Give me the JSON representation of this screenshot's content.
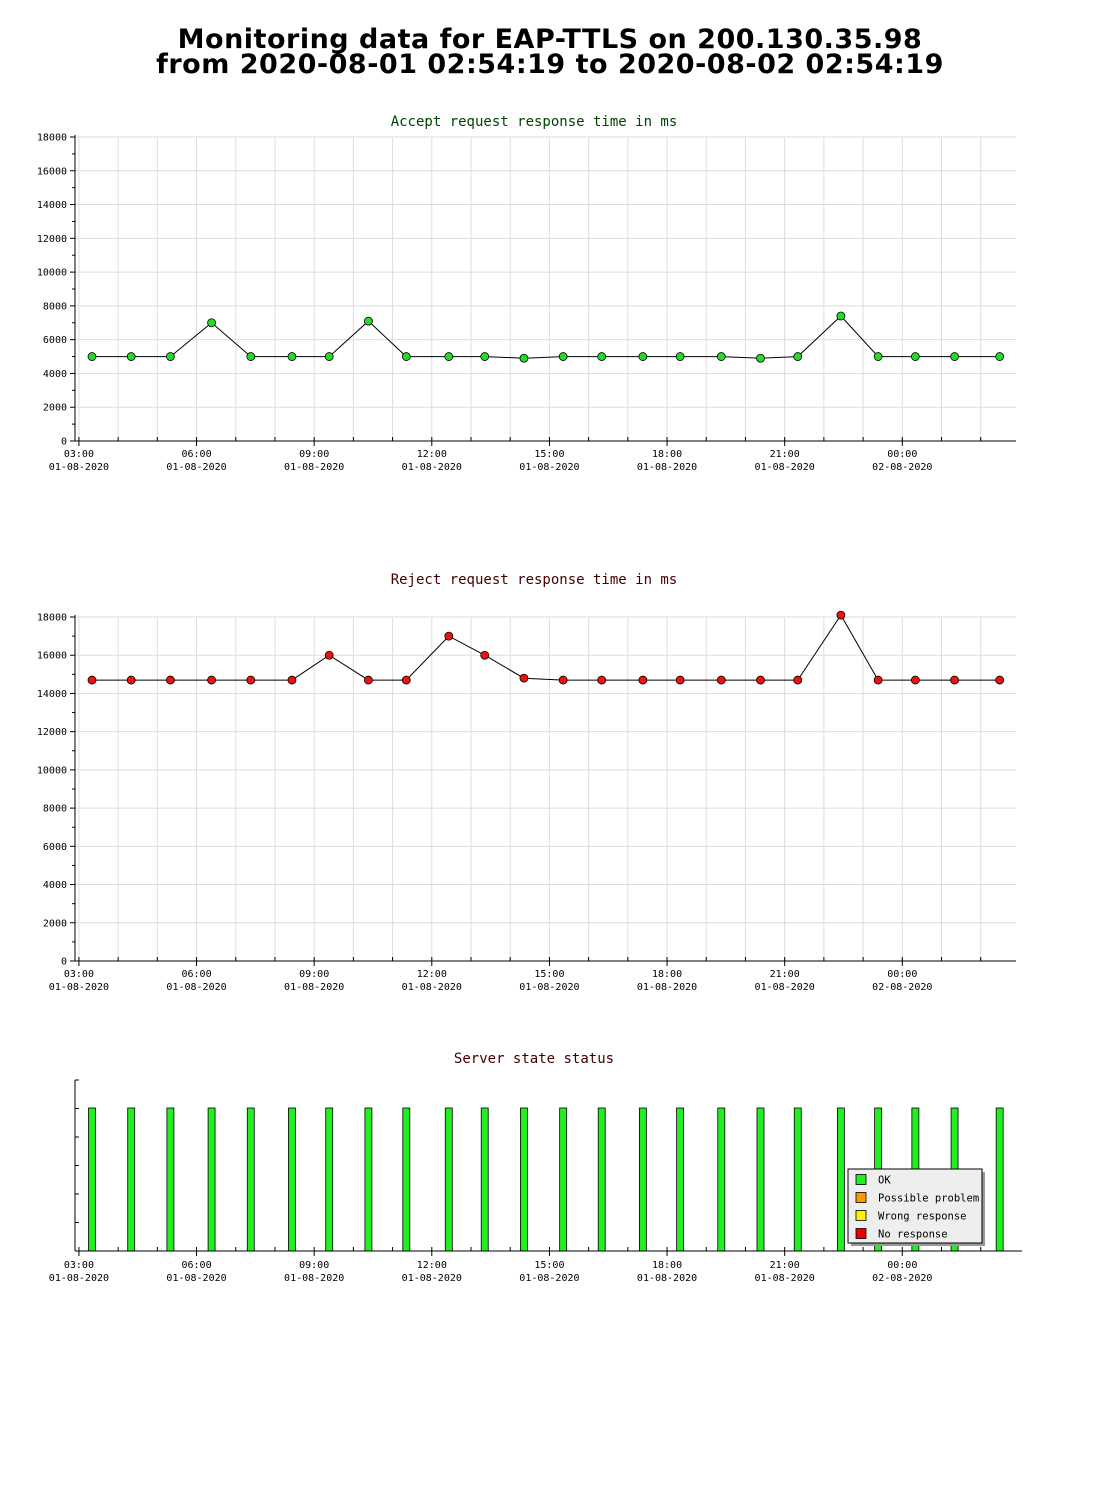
{
  "page": {
    "title_line1": "Monitoring data for EAP-TTLS on 200.130.35.98",
    "title_line2": "from 2020-08-01 02:54:19 to 2020-08-02 02:54:19"
  },
  "colors": {
    "accept_title": "#004400",
    "reject_title": "#440000",
    "status_title": "#440000",
    "accept_marker": "#22dd22",
    "reject_marker": "#ee1111",
    "line": "#000000",
    "grid": "#dddddd",
    "ok": "#22ee22",
    "possible_problem": "#ff9900",
    "wrong_response": "#ffee00",
    "no_response": "#ee0000"
  },
  "x_axis": {
    "ticks": [
      {
        "time": "03:00",
        "date": "01-08-2020"
      },
      {
        "time": "06:00",
        "date": "01-08-2020"
      },
      {
        "time": "09:00",
        "date": "01-08-2020"
      },
      {
        "time": "12:00",
        "date": "01-08-2020"
      },
      {
        "time": "15:00",
        "date": "01-08-2020"
      },
      {
        "time": "18:00",
        "date": "01-08-2020"
      },
      {
        "time": "21:00",
        "date": "01-08-2020"
      },
      {
        "time": "00:00",
        "date": "02-08-2020"
      }
    ]
  },
  "chart_data": [
    {
      "type": "line",
      "title": "Accept request response time in ms",
      "ylim": [
        0,
        18000
      ],
      "yticks": [
        0,
        2000,
        4000,
        6000,
        8000,
        10000,
        12000,
        14000,
        16000,
        18000
      ],
      "grid": true,
      "x": [
        "2020-08-01 03:20",
        "2020-08-01 04:20",
        "2020-08-01 05:20",
        "2020-08-01 06:23",
        "2020-08-01 07:23",
        "2020-08-01 08:26",
        "2020-08-01 09:23",
        "2020-08-01 10:23",
        "2020-08-01 11:21",
        "2020-08-01 12:26",
        "2020-08-01 13:21",
        "2020-08-01 14:21",
        "2020-08-01 15:21",
        "2020-08-01 16:20",
        "2020-08-01 17:23",
        "2020-08-01 18:20",
        "2020-08-01 19:23",
        "2020-08-01 20:23",
        "2020-08-01 21:20",
        "2020-08-01 22:26",
        "2020-08-01 23:23",
        "2020-08-02 00:20",
        "2020-08-02 01:20",
        "2020-08-02 02:29"
      ],
      "series": [
        {
          "values": [
            5000,
            5000,
            5000,
            7000,
            5000,
            5000,
            5000,
            7100,
            5000,
            5000,
            5000,
            4900,
            5000,
            5000,
            5000,
            5000,
            5000,
            4900,
            5000,
            7400,
            5000,
            5000,
            5000,
            5000
          ]
        }
      ]
    },
    {
      "type": "line",
      "title": "Reject request response time in ms",
      "ylim": [
        0,
        18000
      ],
      "yticks": [
        0,
        2000,
        4000,
        6000,
        8000,
        10000,
        12000,
        14000,
        16000,
        18000
      ],
      "grid": true,
      "x": [
        "2020-08-01 03:20",
        "2020-08-01 04:20",
        "2020-08-01 05:20",
        "2020-08-01 06:23",
        "2020-08-01 07:23",
        "2020-08-01 08:26",
        "2020-08-01 09:23",
        "2020-08-01 10:23",
        "2020-08-01 11:21",
        "2020-08-01 12:26",
        "2020-08-01 13:21",
        "2020-08-01 14:21",
        "2020-08-01 15:21",
        "2020-08-01 16:20",
        "2020-08-01 17:23",
        "2020-08-01 18:20",
        "2020-08-01 19:23",
        "2020-08-01 20:23",
        "2020-08-01 21:20",
        "2020-08-01 22:26",
        "2020-08-01 23:23",
        "2020-08-02 00:20",
        "2020-08-02 01:20",
        "2020-08-02 02:29"
      ],
      "series": [
        {
          "values": [
            14700,
            14700,
            14700,
            14700,
            14700,
            14700,
            16000,
            14700,
            14700,
            17000,
            16000,
            14800,
            14700,
            14700,
            14700,
            14700,
            14700,
            14700,
            14700,
            18100,
            14700,
            14700,
            14700,
            14700
          ]
        }
      ]
    },
    {
      "type": "bar",
      "title": "Server state status",
      "x": [
        "2020-08-01 03:20",
        "2020-08-01 04:20",
        "2020-08-01 05:20",
        "2020-08-01 06:23",
        "2020-08-01 07:23",
        "2020-08-01 08:26",
        "2020-08-01 09:23",
        "2020-08-01 10:23",
        "2020-08-01 11:21",
        "2020-08-01 12:26",
        "2020-08-01 13:21",
        "2020-08-01 14:21",
        "2020-08-01 15:21",
        "2020-08-01 16:20",
        "2020-08-01 17:23",
        "2020-08-01 18:20",
        "2020-08-01 19:23",
        "2020-08-01 20:23",
        "2020-08-01 21:20",
        "2020-08-01 22:26",
        "2020-08-01 23:23",
        "2020-08-02 00:20",
        "2020-08-02 01:20",
        "2020-08-02 02:29"
      ],
      "states": [
        "OK",
        "OK",
        "OK",
        "OK",
        "OK",
        "OK",
        "OK",
        "OK",
        "OK",
        "OK",
        "OK",
        "OK",
        "OK",
        "OK",
        "OK",
        "OK",
        "OK",
        "OK",
        "OK",
        "OK",
        "OK",
        "OK",
        "OK",
        "OK"
      ],
      "legend": {
        "position": "bottom-right",
        "entries": [
          {
            "label": "OK",
            "color": "#22ee22"
          },
          {
            "label": "Possible problem",
            "color": "#ff9900"
          },
          {
            "label": "Wrong response",
            "color": "#ffee00"
          },
          {
            "label": "No response",
            "color": "#ee0000"
          }
        ]
      }
    }
  ]
}
